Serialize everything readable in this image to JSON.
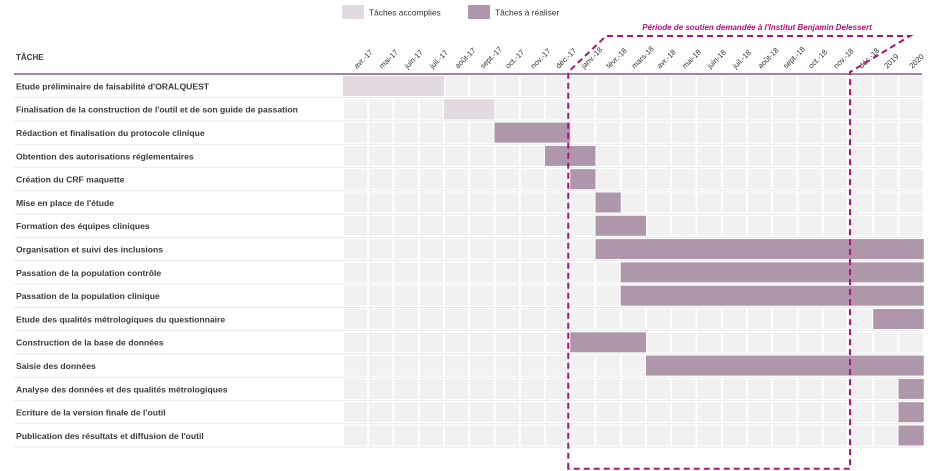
{
  "chart_data": {
    "type": "gantt",
    "task_header": "TÂCHE",
    "legend": [
      {
        "label": "Tâches accomplies",
        "color": "#e3d9e1"
      },
      {
        "label": "Tâches à réaliser",
        "color": "#ae96ab"
      }
    ],
    "columns": [
      "avr.-17",
      "mai-17",
      "juin-17",
      "juil.-17",
      "août-17",
      "sept.-17",
      "oct.-17",
      "nov.-17",
      "déc.-17",
      "janv.-18",
      "févr.-18",
      "mars-18",
      "avr.-18",
      "mai-18",
      "juin-18",
      "juil.-18",
      "août-18",
      "sept.-18",
      "oct.-18",
      "nov.-18",
      "déc.-18",
      "2019",
      "2020"
    ],
    "support_period": {
      "label": "Période de soutien demandée à l'Institut Benjamin Delessert",
      "start": "janv.-18",
      "end": "déc.-18",
      "color": "#b0127a"
    },
    "tasks": [
      {
        "name": "Etude préliminaire de faisabilité d'ORALQUEST",
        "start": "avr.-17",
        "end": "juil.-17",
        "status": "accomplie"
      },
      {
        "name": "Finalisation de la construction de l'outil et de son guide de passation",
        "start": "août-17",
        "end": "sept.-17",
        "status": "accomplie"
      },
      {
        "name": "Rédaction et finalisation du protocole clinique",
        "start": "oct.-17",
        "end": "déc.-17",
        "status": "à réaliser"
      },
      {
        "name": "Obtention des autorisations réglementaires",
        "start": "déc.-17",
        "end": "janv.-18",
        "status": "à réaliser"
      },
      {
        "name": "Création du CRF maquette",
        "start": "janv.-18",
        "end": "janv.-18",
        "status": "à réaliser"
      },
      {
        "name": "Mise en place de l'étude",
        "start": "févr.-18",
        "end": "févr.-18",
        "status": "à réaliser"
      },
      {
        "name": "Formation des équipes cliniques",
        "start": "févr.-18",
        "end": "mars-18",
        "status": "à réaliser"
      },
      {
        "name": "Organisation et suivi des inclusions",
        "start": "févr.-18",
        "end": "2020",
        "status": "à réaliser"
      },
      {
        "name": "Passation de la population contrôle",
        "start": "mars-18",
        "end": "2020",
        "status": "à réaliser"
      },
      {
        "name": "Passation de la population clinique",
        "start": "mars-18",
        "end": "2020",
        "status": "à réaliser"
      },
      {
        "name": "Etude des qualités métrologiques du questionnaire",
        "start": "2019",
        "end": "2020",
        "status": "à réaliser"
      },
      {
        "name": "Construction de la base de données",
        "start": "janv.-18",
        "end": "mars-18",
        "status": "à réaliser"
      },
      {
        "name": "Saisie des données",
        "start": "avr.-18",
        "end": "2020",
        "status": "à réaliser"
      },
      {
        "name": "Analyse des données et des qualités métrologiques",
        "start": "2020",
        "end": "2020",
        "status": "à réaliser"
      },
      {
        "name": "Ecriture de la version finale de l'outil",
        "start": "2020",
        "end": "2020",
        "status": "à réaliser"
      },
      {
        "name": "Publication des résultats et diffusion de l'outil",
        "start": "2020",
        "end": "2020",
        "status": "à réaliser"
      }
    ]
  },
  "colors": {
    "cell": "#f1f1f1",
    "accomplie": "#e3d9e1",
    "a_realiser": "#ae96ab",
    "header_rule": "#6b3f63",
    "row_rule": "#dcdcdc"
  }
}
